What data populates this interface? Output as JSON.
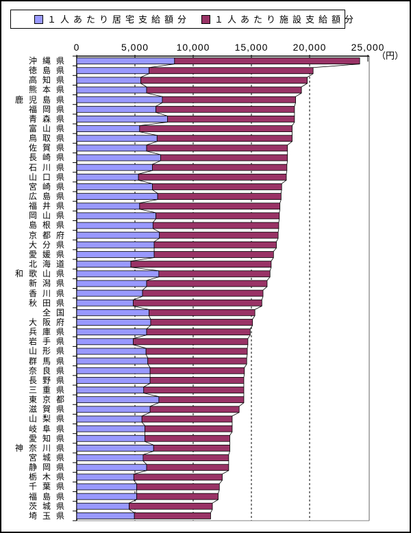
{
  "legend": {
    "items": [
      {
        "label": "１人あたり居宅支給額分",
        "color": "#9999FF"
      },
      {
        "label": "１人あたり施設支給額分",
        "color": "#993366"
      }
    ]
  },
  "chart_data": {
    "type": "bar",
    "subtype": "horizontal-stacked",
    "title": "",
    "unit_label": "（円）",
    "legend_position": "top",
    "grid": "dashed-vertical",
    "series_lines": true,
    "x_axis": {
      "min": 0,
      "max": 25000,
      "tick_interval": 5000,
      "tick_labels": [
        "0",
        "5,000",
        "10,000",
        "15,000",
        "20,000",
        "25,000"
      ]
    },
    "categories": [
      "沖縄県",
      "徳島県",
      "高知県",
      "熊本県",
      "鹿児島県",
      "福岡県",
      "青森県",
      "富山県",
      "鳥取県",
      "佐賀県",
      "長崎県",
      "石川県",
      "山口県",
      "宮崎県",
      "広島県",
      "福井県",
      "岡山県",
      "島根県",
      "京都府",
      "大分県",
      "愛媛県",
      "北海道",
      "和歌山県",
      "新潟県",
      "香川県",
      "秋田県",
      "全国",
      "大阪府",
      "兵庫県",
      "岩手県",
      "山形県",
      "群馬県",
      "奈良県",
      "長野県",
      "三重県",
      "東京都",
      "滋賀県",
      "山梨県",
      "岐阜県",
      "愛知県",
      "神奈川県",
      "宮城県",
      "静岡県",
      "栃木県",
      "千葉県",
      "福島県",
      "茨城県",
      "埼玉県"
    ],
    "series": [
      {
        "name": "１人あたり居宅支給額分",
        "color": "#9999FF",
        "values": [
          8400,
          6200,
          5500,
          6000,
          7350,
          6800,
          7800,
          5400,
          6900,
          6000,
          7200,
          6500,
          5300,
          6500,
          6950,
          5400,
          6800,
          6550,
          7100,
          6650,
          6650,
          4650,
          7050,
          6000,
          5650,
          4850,
          6200,
          6350,
          6000,
          4850,
          5950,
          6100,
          6300,
          6300,
          5750,
          7050,
          6300,
          5600,
          5850,
          5850,
          6600,
          5700,
          6000,
          4900,
          5150,
          5150,
          4500,
          4950
        ]
      },
      {
        "name": "１人あたり施設支給額分",
        "color": "#993366",
        "values": [
          15900,
          14100,
          14300,
          13300,
          11450,
          11900,
          10900,
          13100,
          11600,
          12100,
          10900,
          11550,
          12700,
          11100,
          10600,
          12050,
          10600,
          10800,
          10200,
          10500,
          10250,
          12050,
          9550,
          10350,
          10350,
          11050,
          9100,
          8750,
          8900,
          9850,
          8700,
          8500,
          8100,
          8050,
          8600,
          7300,
          7650,
          7750,
          7500,
          7300,
          6550,
          7350,
          7050,
          7600,
          7100,
          7000,
          7150,
          6550
        ]
      }
    ]
  }
}
